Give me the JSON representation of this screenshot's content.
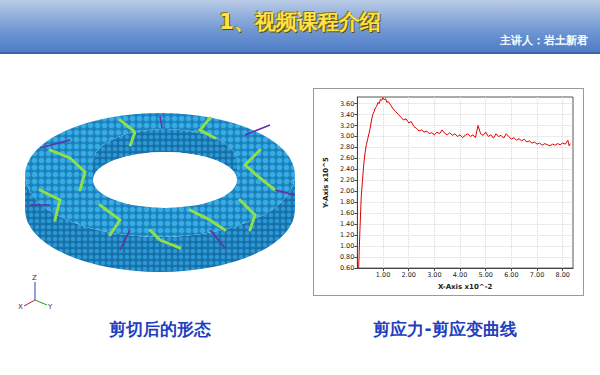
{
  "header": {
    "title": "1、视频课程介绍",
    "speaker": "主讲人：岩土新君"
  },
  "image": {
    "caption": "剪切后的形态",
    "axes_labels": [
      "Z",
      "X",
      "Y"
    ]
  },
  "chart_data": {
    "type": "line",
    "caption": "剪应力-剪应变曲线",
    "x_label": "X-Axis x10^-2",
    "y_label": "Y-Axis x10^5",
    "x": [
      0.05,
      0.1,
      0.15,
      0.2,
      0.25,
      0.3,
      0.35,
      0.4,
      0.45,
      0.5,
      0.55,
      0.6,
      0.65,
      0.7,
      0.75,
      0.8,
      0.85,
      0.9,
      0.95,
      1.0,
      1.05,
      1.1,
      1.15,
      1.2,
      1.3,
      1.4,
      1.5,
      1.6,
      1.7,
      1.8,
      1.9,
      2.0,
      2.1,
      2.2,
      2.3,
      2.4,
      2.5,
      2.6,
      2.7,
      2.8,
      2.9,
      3.0,
      3.1,
      3.2,
      3.3,
      3.4,
      3.5,
      3.6,
      3.7,
      3.8,
      3.9,
      4.0,
      4.1,
      4.2,
      4.3,
      4.4,
      4.5,
      4.6,
      4.7,
      4.8,
      4.9,
      5.0,
      5.1,
      5.2,
      5.3,
      5.4,
      5.5,
      5.6,
      5.7,
      5.8,
      5.9,
      6.0,
      6.1,
      6.2,
      6.3,
      6.4,
      6.5,
      6.6,
      6.7,
      6.8,
      6.9,
      7.0,
      7.1,
      7.2,
      7.3,
      7.4,
      7.5,
      7.6,
      7.7,
      7.8,
      7.9,
      8.0,
      8.1,
      8.2,
      8.25,
      8.3
    ],
    "values": [
      0.6,
      1.3,
      1.9,
      2.2,
      2.5,
      2.7,
      2.85,
      2.95,
      3.05,
      3.15,
      3.3,
      3.4,
      3.45,
      3.52,
      3.55,
      3.62,
      3.6,
      3.68,
      3.66,
      3.71,
      3.67,
      3.69,
      3.62,
      3.64,
      3.57,
      3.5,
      3.45,
      3.4,
      3.35,
      3.3,
      3.32,
      3.25,
      3.27,
      3.18,
      3.15,
      3.1,
      3.12,
      3.08,
      3.1,
      3.05,
      3.07,
      3.03,
      3.08,
      3.05,
      3.12,
      3.06,
      3.03,
      3.07,
      3.02,
      3.05,
      3.0,
      3.03,
      2.98,
      3.02,
      3.05,
      3.0,
      3.03,
      2.98,
      3.2,
      3.05,
      3.02,
      3.08,
      3.0,
      3.03,
      2.97,
      3.05,
      3.0,
      3.02,
      2.97,
      3.05,
      3.0,
      2.95,
      2.98,
      2.93,
      2.96,
      2.92,
      2.95,
      2.9,
      2.92,
      2.88,
      2.9,
      2.86,
      2.88,
      2.84,
      2.87,
      2.85,
      2.83,
      2.86,
      2.84,
      2.87,
      2.85,
      2.88,
      2.86,
      2.93,
      2.83,
      2.87
    ],
    "color": "#e00000",
    "xlim": [
      0,
      8.4
    ],
    "ylim": [
      0.6,
      3.72
    ],
    "xticks": [
      {
        "value": 1,
        "label": "1.00"
      },
      {
        "value": 2,
        "label": "2.00"
      },
      {
        "value": 3,
        "label": "3.00"
      },
      {
        "value": 4,
        "label": "4.00"
      },
      {
        "value": 5,
        "label": "5.00"
      },
      {
        "value": 6,
        "label": "6.00"
      },
      {
        "value": 7,
        "label": "7.00"
      },
      {
        "value": 8,
        "label": "8.00"
      }
    ],
    "yticks": [
      {
        "value": 0.6,
        "label": "0.60"
      },
      {
        "value": 0.8,
        "label": "0.80"
      },
      {
        "value": 1.0,
        "label": "1.00"
      },
      {
        "value": 1.2,
        "label": "1.20"
      },
      {
        "value": 1.4,
        "label": "1.40"
      },
      {
        "value": 1.6,
        "label": "1.60"
      },
      {
        "value": 1.8,
        "label": "1.80"
      },
      {
        "value": 2.0,
        "label": "2.00"
      },
      {
        "value": 2.2,
        "label": "2.20"
      },
      {
        "value": 2.4,
        "label": "2.40"
      },
      {
        "value": 2.6,
        "label": "2.60"
      },
      {
        "value": 2.8,
        "label": "2.80"
      },
      {
        "value": 3.0,
        "label": "3.00"
      },
      {
        "value": 3.2,
        "label": "3.20"
      },
      {
        "value": 3.4,
        "label": "3.40"
      },
      {
        "value": 3.6,
        "label": "3.60"
      }
    ],
    "grid": true
  }
}
